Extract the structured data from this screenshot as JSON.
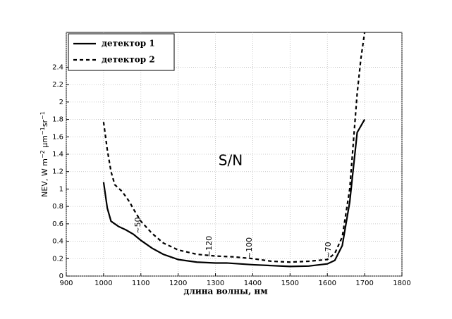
{
  "chart_data": {
    "type": "line",
    "xlabel": "длина волны, нм",
    "ylabel": [
      "NEV, W m",
      "−2",
      " µm",
      "−1",
      "sr",
      "−1"
    ],
    "xlim": [
      900,
      1800
    ],
    "xticks": [
      900,
      1000,
      1100,
      1200,
      1300,
      1400,
      1500,
      1600,
      1700,
      1800
    ],
    "ylim": [
      0,
      2.8
    ],
    "yticks": [
      0,
      0.2,
      0.4,
      0.6,
      0.8,
      1,
      1.2,
      1.4,
      1.6,
      1.8,
      2,
      2.2,
      2.4
    ],
    "grid": true,
    "legend": "upper left",
    "series": [
      {
        "name": "детектор 1",
        "color": "#000",
        "style": "solid",
        "x": [
          1000,
          1010,
          1020,
          1040,
          1060,
          1080,
          1100,
          1130,
          1160,
          1200,
          1250,
          1300,
          1330,
          1400,
          1450,
          1500,
          1550,
          1600,
          1620,
          1640,
          1660,
          1680,
          1700
        ],
        "values": [
          1.08,
          0.78,
          0.63,
          0.57,
          0.53,
          0.48,
          0.41,
          0.32,
          0.25,
          0.19,
          0.16,
          0.15,
          0.15,
          0.13,
          0.12,
          0.11,
          0.115,
          0.14,
          0.18,
          0.35,
          0.85,
          1.65,
          1.8
        ]
      },
      {
        "name": "детектор 2",
        "color": "#000",
        "style": "dashed",
        "x": [
          1000,
          1010,
          1020,
          1030,
          1050,
          1070,
          1080,
          1100,
          1130,
          1160,
          1200,
          1250,
          1300,
          1350,
          1400,
          1450,
          1500,
          1550,
          1600,
          1620,
          1640,
          1660,
          1680,
          1690,
          1700
        ],
        "values": [
          1.77,
          1.45,
          1.2,
          1.05,
          0.97,
          0.85,
          0.77,
          0.63,
          0.49,
          0.38,
          0.3,
          0.25,
          0.23,
          0.22,
          0.2,
          0.17,
          0.16,
          0.17,
          0.19,
          0.26,
          0.45,
          1.0,
          2.1,
          2.5,
          2.8
        ]
      }
    ],
    "annotations": [
      "~50",
      "~120",
      "~100",
      "~70",
      "S/N"
    ]
  }
}
